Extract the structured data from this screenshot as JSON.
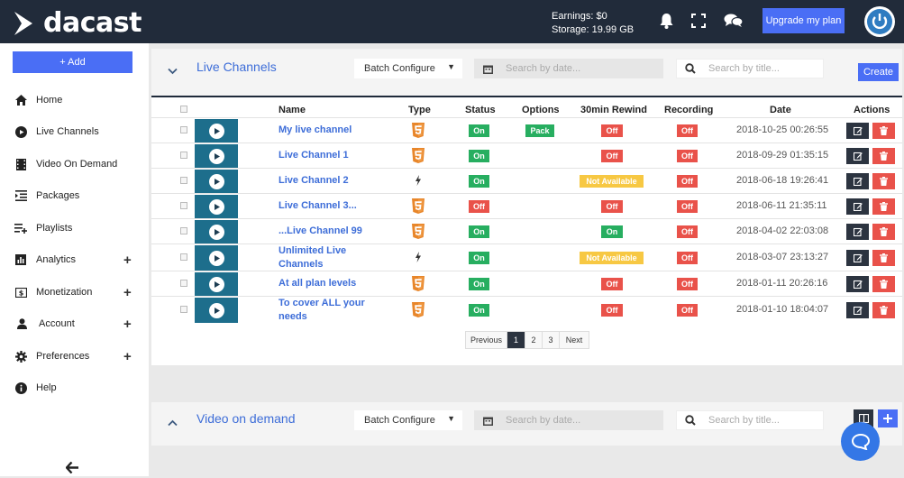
{
  "header": {
    "logo_text": "dacast",
    "earnings": "Earnings: $0",
    "storage": "Storage: 19.99 GB",
    "upgrade_label": "Upgrade my plan"
  },
  "sidebar": {
    "add_label": "+ Add",
    "items": [
      {
        "label": "Home",
        "icon": "home-icon",
        "has_plus": false
      },
      {
        "label": "Live Channels",
        "icon": "play-circle-icon",
        "has_plus": false
      },
      {
        "label": "Video On Demand",
        "icon": "film-icon",
        "has_plus": false
      },
      {
        "label": "Packages",
        "icon": "list-indent-icon",
        "has_plus": false
      },
      {
        "label": "Playlists",
        "icon": "playlist-add-icon",
        "has_plus": false
      },
      {
        "label": "Analytics",
        "icon": "bar-chart-icon",
        "has_plus": true
      },
      {
        "label": "Monetization",
        "icon": "dollar-icon",
        "has_plus": true
      },
      {
        "label": "Account",
        "icon": "user-icon",
        "has_plus": true
      },
      {
        "label": "Preferences",
        "icon": "gear-icon",
        "has_plus": true
      },
      {
        "label": "Help",
        "icon": "info-icon",
        "has_plus": false
      }
    ]
  },
  "live": {
    "title": "Live Channels",
    "batch_label": "Batch Configure",
    "date_placeholder": "Search by date...",
    "title_placeholder": "Search by title...",
    "create_label": "Create",
    "columns": [
      "Name",
      "Type",
      "Status",
      "Options",
      "30min Rewind",
      "Recording",
      "Date",
      "Actions"
    ],
    "rows": [
      {
        "name": "My live channel",
        "type": "html5",
        "status": "On",
        "options": "Pack",
        "rewind": "Off",
        "recording": "Off",
        "date": "2018-10-25 00:26:55"
      },
      {
        "name": "Live Channel 1",
        "type": "html5",
        "status": "On",
        "options": "",
        "rewind": "Off",
        "recording": "Off",
        "date": "2018-09-29 01:35:15"
      },
      {
        "name": "Live Channel 2",
        "type": "flash",
        "status": "On",
        "options": "",
        "rewind": "Not Available",
        "recording": "Off",
        "date": "2018-06-18 19:26:41"
      },
      {
        "name": "Live Channel 3...",
        "type": "html5",
        "status": "Off",
        "options": "",
        "rewind": "Off",
        "recording": "Off",
        "date": "2018-06-11 21:35:11"
      },
      {
        "name": "...Live Channel 99",
        "type": "html5",
        "status": "On",
        "options": "",
        "rewind": "On",
        "recording": "Off",
        "date": "2018-04-02 22:03:08"
      },
      {
        "name": "Unlimited Live Channels",
        "type": "flash",
        "status": "On",
        "options": "",
        "rewind": "Not Available",
        "recording": "Off",
        "date": "2018-03-07 23:13:27"
      },
      {
        "name": "At all plan levels",
        "type": "html5",
        "status": "On",
        "options": "",
        "rewind": "Off",
        "recording": "Off",
        "date": "2018-01-11 20:26:16"
      },
      {
        "name": "To cover ALL your needs",
        "type": "html5",
        "status": "On",
        "options": "",
        "rewind": "Off",
        "recording": "Off",
        "date": "2018-01-10 18:04:07"
      }
    ],
    "pagination": {
      "previous": "Previous",
      "pages": [
        "1",
        "2",
        "3"
      ],
      "current": "1",
      "next": "Next"
    }
  },
  "vod": {
    "title": "Video on demand",
    "batch_label": "Batch Configure",
    "date_placeholder": "Search by date...",
    "title_placeholder": "Search by title..."
  },
  "colors": {
    "header_bg": "#212b3a",
    "accent": "#4a6ef5",
    "link": "#3d6dd8",
    "on": "#27ae60",
    "off": "#e9524a",
    "not_available": "#f7c843",
    "html5": "#e8862a"
  }
}
